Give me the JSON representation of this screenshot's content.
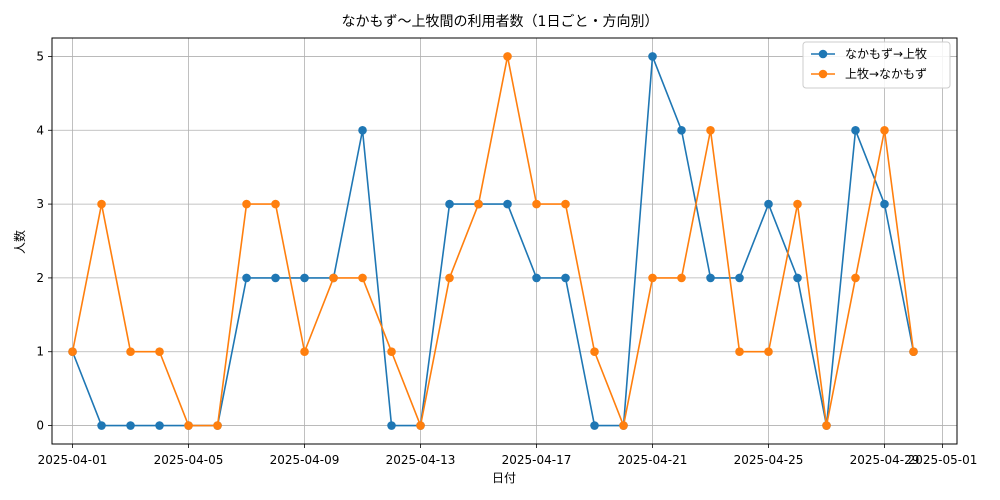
{
  "chart_data": {
    "type": "line",
    "title": "なかもず〜上牧間の利用者数（1日ごと・方向別）",
    "xlabel": "日付",
    "ylabel": "人数",
    "x": [
      "2025-04-01",
      "2025-04-02",
      "2025-04-03",
      "2025-04-04",
      "2025-04-05",
      "2025-04-06",
      "2025-04-07",
      "2025-04-08",
      "2025-04-09",
      "2025-04-10",
      "2025-04-11",
      "2025-04-12",
      "2025-04-13",
      "2025-04-14",
      "2025-04-15",
      "2025-04-16",
      "2025-04-17",
      "2025-04-18",
      "2025-04-19",
      "2025-04-20",
      "2025-04-21",
      "2025-04-22",
      "2025-04-23",
      "2025-04-24",
      "2025-04-25",
      "2025-04-26",
      "2025-04-27",
      "2025-04-28",
      "2025-04-29",
      "2025-04-30"
    ],
    "xlim": [
      "2025-03-31T07:00",
      "2025-05-01T12:00"
    ],
    "xticks": [
      "2025-04-01",
      "2025-04-05",
      "2025-04-09",
      "2025-04-13",
      "2025-04-17",
      "2025-04-21",
      "2025-04-25",
      "2025-04-29",
      "2025-05-01"
    ],
    "ylim": [
      -0.25,
      5.25
    ],
    "yticks": [
      0,
      1,
      2,
      3,
      4,
      5
    ],
    "grid": true,
    "legend": "top-right",
    "series": [
      {
        "name": "なかもず→上牧",
        "color": "#1f77b4",
        "values": [
          1,
          0,
          0,
          0,
          0,
          0,
          2,
          2,
          2,
          2,
          4,
          0,
          0,
          3,
          3,
          3,
          2,
          2,
          0,
          0,
          5,
          4,
          2,
          2,
          3,
          2,
          0,
          4,
          3,
          1
        ]
      },
      {
        "name": "上牧→なかもず",
        "color": "#ff7f0e",
        "values": [
          1,
          3,
          1,
          1,
          0,
          0,
          3,
          3,
          1,
          2,
          2,
          1,
          0,
          2,
          3,
          5,
          3,
          3,
          1,
          0,
          2,
          2,
          4,
          1,
          1,
          3,
          0,
          2,
          4,
          1
        ]
      }
    ]
  }
}
